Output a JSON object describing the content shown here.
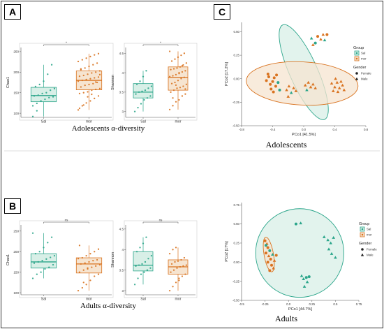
{
  "panels": {
    "A": {
      "letter": "A",
      "caption": "Adolescents α-diversity"
    },
    "B": {
      "letter": "B",
      "caption": "Adults α-diversity"
    },
    "C": {
      "letter": "C",
      "caption_top": "Adolescents",
      "caption_bottom": "Adults"
    }
  },
  "colors": {
    "sal": "#2aa58a",
    "mor": "#d97320",
    "sal_fill": "#d8efe7",
    "mor_fill": "#f6e4d0"
  },
  "chart_data": [
    {
      "id": "a-chao1",
      "type": "box",
      "ylabel": "Chao1",
      "categories": [
        "Sal",
        "mor"
      ],
      "ylim": [
        90,
        260
      ],
      "yticks": [
        100,
        150,
        200,
        250
      ],
      "signif": "*",
      "boxes": [
        {
          "q1": 128,
          "median": 143,
          "q3": 163,
          "wlo": 92,
          "whi": 218
        },
        {
          "q1": 157,
          "median": 180,
          "q3": 203,
          "wlo": 108,
          "whi": 245
        }
      ],
      "points": [
        [
          118,
          124,
          130,
          134,
          138,
          140,
          142,
          144,
          148,
          150,
          156,
          160,
          165,
          170,
          178,
          195,
          218,
          92,
          106
        ],
        [
          108,
          118,
          125,
          130,
          136,
          142,
          148,
          150,
          152,
          156,
          158,
          160,
          164,
          168,
          170,
          172,
          175,
          178,
          180,
          182,
          184,
          186,
          188,
          190,
          192,
          195,
          198,
          200,
          203,
          206,
          210,
          214,
          218,
          222,
          226,
          230,
          234,
          238,
          242,
          245,
          112,
          120,
          140,
          146,
          176,
          194,
          208
        ]
      ]
    },
    {
      "id": "a-shannon",
      "type": "box",
      "ylabel": "Shannon",
      "categories": [
        "Sal",
        "mor"
      ],
      "ylim": [
        2.85,
        4.65
      ],
      "yticks": [
        3.0,
        3.5,
        4.0,
        4.5
      ],
      "signif": "*",
      "boxes": [
        {
          "q1": 3.35,
          "median": 3.5,
          "q3": 3.72,
          "wlo": 3.0,
          "whi": 4.05
        },
        {
          "q1": 3.55,
          "median": 3.88,
          "q3": 4.15,
          "wlo": 3.05,
          "whi": 4.55
        }
      ],
      "points": [
        [
          3.0,
          3.1,
          3.2,
          3.3,
          3.35,
          3.4,
          3.45,
          3.5,
          3.52,
          3.55,
          3.6,
          3.65,
          3.7,
          3.78,
          3.9,
          4.05
        ],
        [
          3.05,
          3.15,
          3.25,
          3.3,
          3.4,
          3.45,
          3.5,
          3.55,
          3.6,
          3.62,
          3.65,
          3.7,
          3.72,
          3.75,
          3.8,
          3.85,
          3.88,
          3.9,
          3.92,
          3.95,
          4.0,
          4.02,
          4.05,
          4.08,
          4.1,
          4.12,
          4.15,
          4.2,
          4.25,
          4.3,
          4.35,
          4.4,
          4.45,
          4.5,
          4.55,
          3.35,
          3.68,
          3.98,
          4.18,
          3.58
        ]
      ]
    },
    {
      "id": "b-chao1",
      "type": "box",
      "ylabel": "Chao1",
      "categories": [
        "Sal",
        "mor"
      ],
      "ylim": [
        95,
        265
      ],
      "yticks": [
        100,
        150,
        200,
        250
      ],
      "signif": "ns",
      "boxes": [
        {
          "q1": 160,
          "median": 175,
          "q3": 195,
          "wlo": 135,
          "whi": 245
        },
        {
          "q1": 148,
          "median": 170,
          "q3": 185,
          "wlo": 105,
          "whi": 215
        }
      ],
      "points": [
        [
          135,
          145,
          150,
          158,
          162,
          168,
          172,
          175,
          178,
          182,
          186,
          190,
          195,
          200,
          210,
          222,
          235,
          245
        ],
        [
          105,
          112,
          120,
          130,
          140,
          145,
          150,
          155,
          158,
          162,
          165,
          168,
          170,
          172,
          175,
          178,
          180,
          183,
          185,
          190,
          195,
          200,
          206,
          215,
          125,
          160
        ]
      ]
    },
    {
      "id": "b-shannon",
      "type": "box",
      "ylabel": "Shannon",
      "categories": [
        "Sal",
        "mor"
      ],
      "ylim": [
        2.9,
        4.6
      ],
      "yticks": [
        3.0,
        3.5,
        4.0,
        4.5
      ],
      "signif": "ns",
      "boxes": [
        {
          "q1": 3.48,
          "median": 3.62,
          "q3": 3.95,
          "wlo": 3.15,
          "whi": 4.3
        },
        {
          "q1": 3.4,
          "median": 3.58,
          "q3": 3.75,
          "wlo": 3.0,
          "whi": 4.05
        }
      ],
      "points": [
        [
          3.15,
          3.3,
          3.4,
          3.45,
          3.5,
          3.55,
          3.6,
          3.62,
          3.65,
          3.7,
          3.78,
          3.85,
          3.95,
          4.05,
          4.15,
          4.3
        ],
        [
          3.0,
          3.1,
          3.2,
          3.3,
          3.35,
          3.4,
          3.45,
          3.5,
          3.55,
          3.58,
          3.6,
          3.62,
          3.65,
          3.7,
          3.72,
          3.75,
          3.8,
          3.9,
          4.0,
          4.05,
          3.25
        ]
      ]
    },
    {
      "id": "c-adolescents",
      "type": "scatter",
      "xlabel": "PCo1 [41.5%]",
      "ylabel": "PCo2 [17.2%]",
      "xlim": [
        -0.8,
        0.8
      ],
      "ylim": [
        -0.5,
        0.6
      ],
      "xticks": [
        -0.8,
        -0.4,
        0.0,
        0.4,
        0.8
      ],
      "yticks": [
        -0.5,
        -0.25,
        0.0,
        0.25,
        0.5
      ],
      "ellipses": [
        {
          "group": "Sal",
          "cx": 0.0,
          "cy": 0.07,
          "rx": 0.18,
          "ry": 0.55,
          "angle": -24
        },
        {
          "group": "mor",
          "cx": -0.02,
          "cy": -0.05,
          "rx": 0.72,
          "ry": 0.23,
          "angle": 3
        }
      ],
      "legend": {
        "group_title": "Group",
        "groups": [
          "Sal",
          "mor"
        ],
        "gender_title": "Gender",
        "genders": [
          "Female",
          "Male"
        ]
      },
      "points": [
        {
          "x": 0.1,
          "y": 0.43,
          "g": "Sal",
          "s": "Male"
        },
        {
          "x": 0.15,
          "y": 0.38,
          "g": "Sal",
          "s": "Female"
        },
        {
          "x": 0.18,
          "y": 0.45,
          "g": "mor",
          "s": "Female"
        },
        {
          "x": 0.22,
          "y": 0.42,
          "g": "mor",
          "s": "Male"
        },
        {
          "x": 0.25,
          "y": 0.47,
          "g": "mor",
          "s": "Male"
        },
        {
          "x": 0.27,
          "y": 0.41,
          "g": "Sal",
          "s": "Male"
        },
        {
          "x": 0.3,
          "y": 0.47,
          "g": "mor",
          "s": "Female"
        },
        {
          "x": 0.12,
          "y": 0.36,
          "g": "mor",
          "s": "Male"
        },
        {
          "x": -0.48,
          "y": -0.02,
          "g": "mor",
          "s": "Female"
        },
        {
          "x": -0.45,
          "y": 0.02,
          "g": "mor",
          "s": "Female"
        },
        {
          "x": -0.43,
          "y": -0.06,
          "g": "mor",
          "s": "Female"
        },
        {
          "x": -0.4,
          "y": -0.03,
          "g": "mor",
          "s": "Female"
        },
        {
          "x": -0.38,
          "y": 0.01,
          "g": "mor",
          "s": "Female"
        },
        {
          "x": -0.36,
          "y": -0.08,
          "g": "mor",
          "s": "Female"
        },
        {
          "x": -0.42,
          "y": -0.11,
          "g": "mor",
          "s": "Female"
        },
        {
          "x": -0.33,
          "y": -0.04,
          "g": "Sal",
          "s": "Female"
        },
        {
          "x": -0.31,
          "y": -0.12,
          "g": "Sal",
          "s": "Female"
        },
        {
          "x": -0.46,
          "y": 0.05,
          "g": "mor",
          "s": "Female"
        },
        {
          "x": -0.39,
          "y": -0.14,
          "g": "mor",
          "s": "Female"
        },
        {
          "x": -0.35,
          "y": 0.04,
          "g": "mor",
          "s": "Female"
        },
        {
          "x": -0.22,
          "y": -0.12,
          "g": "mor",
          "s": "Male"
        },
        {
          "x": -0.19,
          "y": -0.08,
          "g": "mor",
          "s": "Male"
        },
        {
          "x": -0.16,
          "y": -0.15,
          "g": "Sal",
          "s": "Male"
        },
        {
          "x": -0.13,
          "y": -0.1,
          "g": "mor",
          "s": "Male"
        },
        {
          "x": -0.1,
          "y": -0.13,
          "g": "mor",
          "s": "Male"
        },
        {
          "x": -0.2,
          "y": -0.19,
          "g": "mor",
          "s": "Male"
        },
        {
          "x": 0.02,
          "y": -0.07,
          "g": "mor",
          "s": "Male"
        },
        {
          "x": 0.06,
          "y": -0.04,
          "g": "mor",
          "s": "Male"
        },
        {
          "x": 0.09,
          "y": -0.09,
          "g": "mor",
          "s": "Male"
        },
        {
          "x": 0.12,
          "y": -0.06,
          "g": "mor",
          "s": "Male"
        },
        {
          "x": 0.15,
          "y": -0.1,
          "g": "mor",
          "s": "Male"
        },
        {
          "x": 0.04,
          "y": -0.12,
          "g": "Sal",
          "s": "Male"
        },
        {
          "x": 0.36,
          "y": -0.05,
          "g": "mor",
          "s": "Male"
        },
        {
          "x": 0.4,
          "y": -0.09,
          "g": "mor",
          "s": "Male"
        },
        {
          "x": 0.43,
          "y": -0.04,
          "g": "mor",
          "s": "Male"
        },
        {
          "x": 0.46,
          "y": -0.1,
          "g": "mor",
          "s": "Male"
        },
        {
          "x": 0.5,
          "y": -0.07,
          "g": "mor",
          "s": "Male"
        },
        {
          "x": 0.38,
          "y": -0.13,
          "g": "mor",
          "s": "Male"
        },
        {
          "x": 0.44,
          "y": -0.14,
          "g": "mor",
          "s": "Male"
        },
        {
          "x": 0.48,
          "y": -0.03,
          "g": "mor",
          "s": "Male"
        },
        {
          "x": 0.41,
          "y": 0.0,
          "g": "mor",
          "s": "Male"
        },
        {
          "x": 0.52,
          "y": -0.12,
          "g": "mor",
          "s": "Male"
        }
      ]
    },
    {
      "id": "c-adults",
      "type": "scatter",
      "xlabel": "PCo1 [44.7%]",
      "ylabel": "PCo2 [17%]",
      "xlim": [
        -0.5,
        0.75
      ],
      "ylim": [
        -0.5,
        0.78
      ],
      "xticks": [
        -0.5,
        -0.25,
        0.0,
        0.25,
        0.5,
        0.75
      ],
      "yticks": [
        -0.5,
        -0.25,
        0.0,
        0.25,
        0.5,
        0.75
      ],
      "ellipses": [
        {
          "group": "Sal",
          "cx": 0.12,
          "cy": 0.12,
          "rx": 0.47,
          "ry": 0.58,
          "angle": 0
        },
        {
          "group": "mor",
          "cx": -0.21,
          "cy": 0.1,
          "rx": 0.05,
          "ry": 0.23,
          "angle": -10
        }
      ],
      "legend": {
        "group_title": "Group",
        "groups": [
          "Sal",
          "mor"
        ],
        "gender_title": "Gender",
        "genders": [
          "Female",
          "Male"
        ]
      },
      "points": [
        {
          "x": -0.25,
          "y": 0.28,
          "g": "mor",
          "s": "Female"
        },
        {
          "x": -0.23,
          "y": 0.24,
          "g": "mor",
          "s": "Male"
        },
        {
          "x": -0.22,
          "y": 0.19,
          "g": "mor",
          "s": "Female"
        },
        {
          "x": -0.2,
          "y": 0.15,
          "g": "Sal",
          "s": "Female"
        },
        {
          "x": -0.24,
          "y": 0.12,
          "g": "mor",
          "s": "Female"
        },
        {
          "x": -0.21,
          "y": 0.08,
          "g": "mor",
          "s": "Male"
        },
        {
          "x": -0.19,
          "y": 0.04,
          "g": "mor",
          "s": "Female"
        },
        {
          "x": -0.22,
          "y": 0.0,
          "g": "mor",
          "s": "Female"
        },
        {
          "x": -0.18,
          "y": -0.04,
          "g": "mor",
          "s": "Female"
        },
        {
          "x": -0.16,
          "y": -0.08,
          "g": "mor",
          "s": "Male"
        },
        {
          "x": -0.2,
          "y": -0.11,
          "g": "mor",
          "s": "Female"
        },
        {
          "x": -0.17,
          "y": 0.1,
          "g": "Sal",
          "s": "Male"
        },
        {
          "x": -0.15,
          "y": 0.02,
          "g": "mor",
          "s": "Male"
        },
        {
          "x": -0.13,
          "y": 0.09,
          "g": "mor",
          "s": "Female"
        },
        {
          "x": -0.24,
          "y": 0.22,
          "g": "Sal",
          "s": "Female"
        },
        {
          "x": 0.08,
          "y": 0.5,
          "g": "Sal",
          "s": "Female"
        },
        {
          "x": 0.13,
          "y": 0.51,
          "g": "Sal",
          "s": "Male"
        },
        {
          "x": 0.38,
          "y": 0.33,
          "g": "Sal",
          "s": "Male"
        },
        {
          "x": 0.42,
          "y": 0.29,
          "g": "Sal",
          "s": "Male"
        },
        {
          "x": 0.45,
          "y": 0.25,
          "g": "Sal",
          "s": "Male"
        },
        {
          "x": 0.48,
          "y": 0.32,
          "g": "Sal",
          "s": "Male"
        },
        {
          "x": 0.43,
          "y": 0.17,
          "g": "Sal",
          "s": "Male"
        },
        {
          "x": 0.46,
          "y": 0.11,
          "g": "Sal",
          "s": "Male"
        },
        {
          "x": 0.5,
          "y": 0.06,
          "g": "Sal",
          "s": "Male"
        },
        {
          "x": 0.14,
          "y": -0.18,
          "g": "Sal",
          "s": "Male"
        },
        {
          "x": 0.16,
          "y": -0.22,
          "g": "Sal",
          "s": "Male"
        },
        {
          "x": 0.19,
          "y": -0.2,
          "g": "Sal",
          "s": "Female"
        },
        {
          "x": 0.22,
          "y": -0.19,
          "g": "Sal",
          "s": "Female"
        },
        {
          "x": 0.2,
          "y": -0.26,
          "g": "Sal",
          "s": "Male"
        },
        {
          "x": 0.17,
          "y": -0.32,
          "g": "Sal",
          "s": "Male"
        }
      ]
    }
  ]
}
